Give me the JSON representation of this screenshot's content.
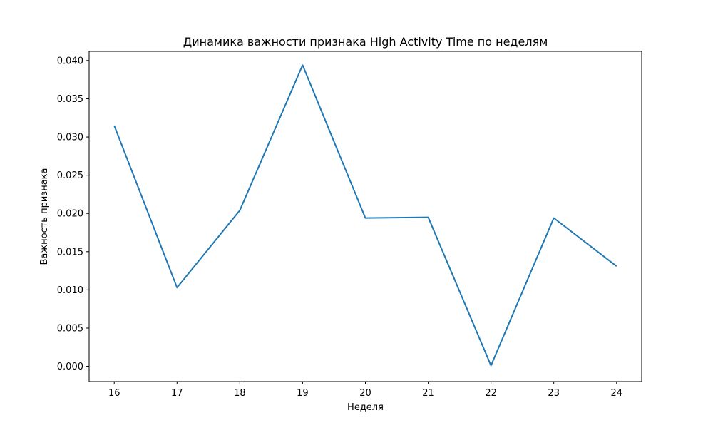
{
  "chart_data": {
    "type": "line",
    "title": "Динамика важности признака High Activity Time по неделям",
    "xlabel": "Неделя",
    "ylabel": "Важность признака",
    "x": [
      16,
      17,
      18,
      19,
      20,
      21,
      22,
      23,
      24
    ],
    "series": [
      {
        "values": [
          0.0315,
          0.0103,
          0.0204,
          0.0394,
          0.0194,
          0.0195,
          0.0001,
          0.0194,
          0.0131
        ],
        "color": "#1f77b4"
      }
    ],
    "xlim": [
      15.6,
      24.4
    ],
    "ylim": [
      -0.002,
      0.0412
    ],
    "xticks": [
      "16",
      "17",
      "18",
      "19",
      "20",
      "21",
      "22",
      "23",
      "24"
    ],
    "yticks": [
      "0.000",
      "0.005",
      "0.010",
      "0.015",
      "0.020",
      "0.025",
      "0.030",
      "0.035",
      "0.040"
    ],
    "grid": false,
    "legend": false
  }
}
